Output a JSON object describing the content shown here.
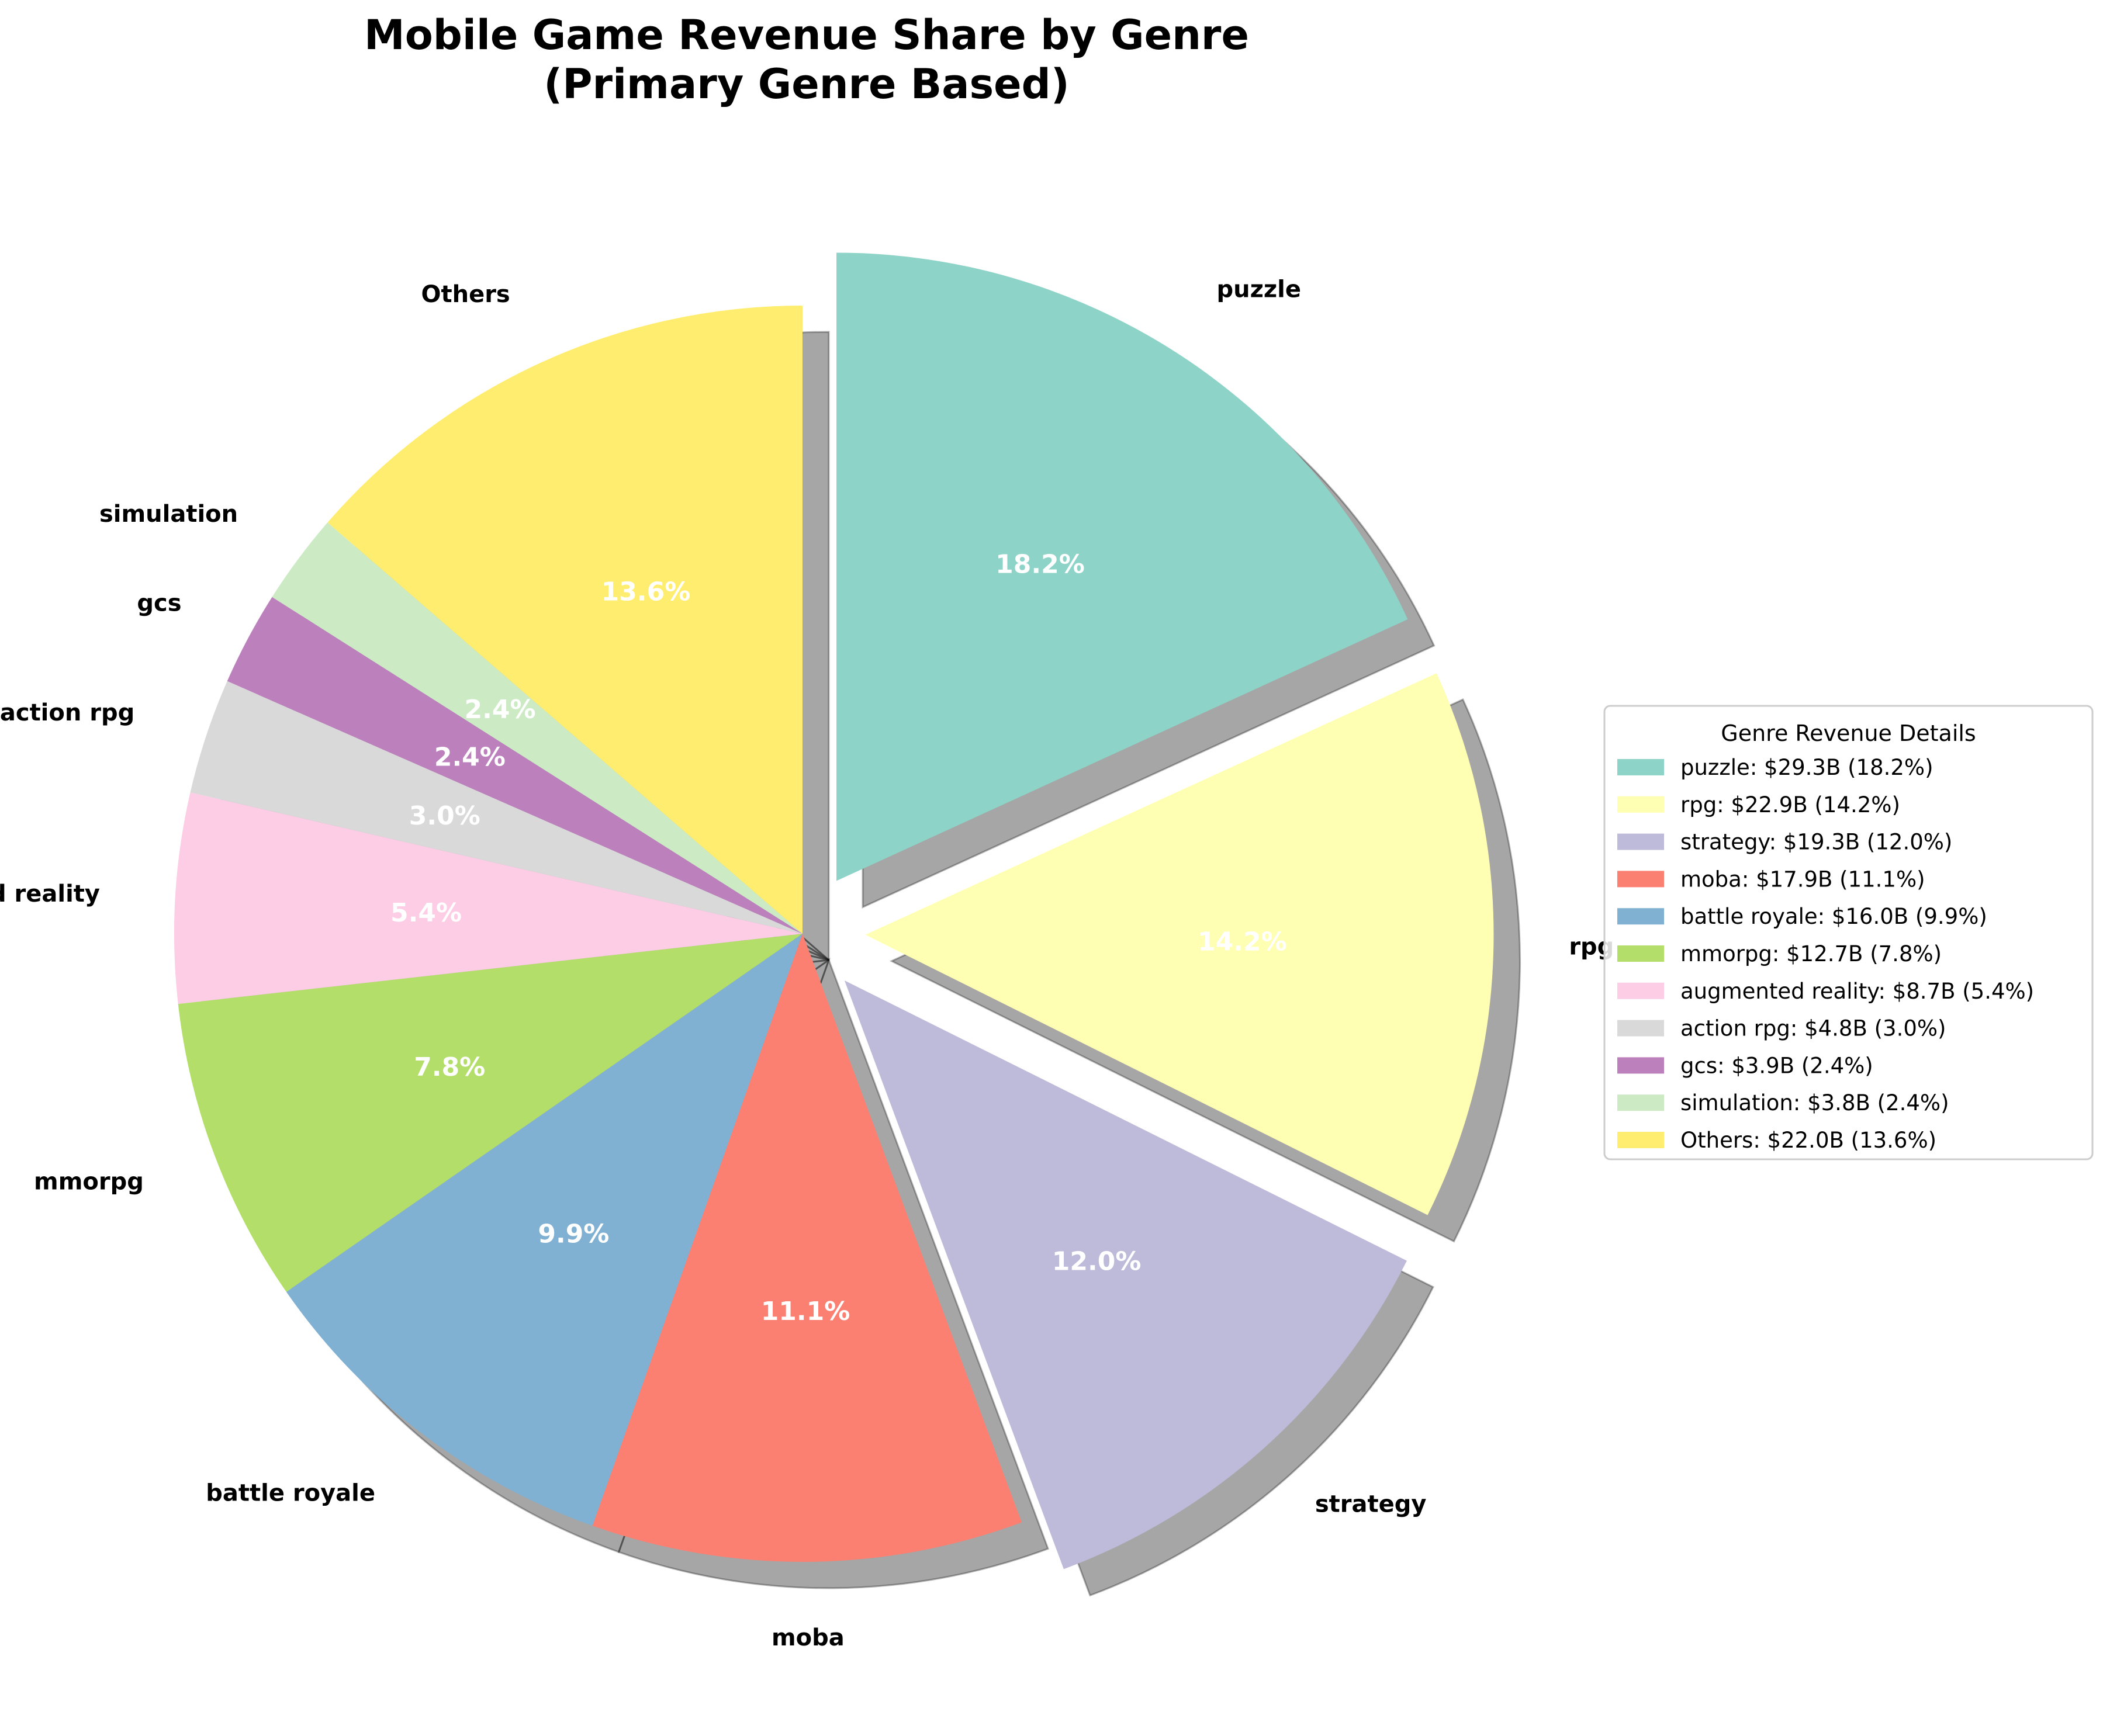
{
  "chart_data": {
    "type": "pie",
    "title": "Mobile Game Revenue Share by Genre",
    "subtitle": "(Primary Genre Based)",
    "start_angle_deg": 90,
    "direction": "clockwise",
    "shadow": true,
    "slices": [
      {
        "label": "puzzle",
        "value": 29.3,
        "pct": "18.2%",
        "legend": "puzzle: $29.3B (18.2%)",
        "color": "#8dd3c7",
        "exploded": true
      },
      {
        "label": "rpg",
        "value": 22.9,
        "pct": "14.2%",
        "legend": "rpg: $22.9B (14.2%)",
        "color": "#ffffb3",
        "exploded": true
      },
      {
        "label": "strategy",
        "value": 19.3,
        "pct": "12.0%",
        "legend": "strategy: $19.3B (12.0%)",
        "color": "#bebada",
        "exploded": true
      },
      {
        "label": "moba",
        "value": 17.9,
        "pct": "11.1%",
        "legend": "moba: $17.9B (11.1%)",
        "color": "#fb8072",
        "exploded": false
      },
      {
        "label": "battle royale",
        "value": 16.0,
        "pct": "9.9%",
        "legend": "battle royale: $16.0B (9.9%)",
        "color": "#80b1d3",
        "exploded": false
      },
      {
        "label": "mmorpg",
        "value": 12.7,
        "pct": "7.8%",
        "legend": "mmorpg: $12.7B (7.8%)",
        "color": "#b3de69",
        "exploded": false
      },
      {
        "label": "augmented reality",
        "value": 8.7,
        "pct": "5.4%",
        "legend": "augmented reality: $8.7B (5.4%)",
        "color": "#fccde5",
        "exploded": false
      },
      {
        "label": "action rpg",
        "value": 4.8,
        "pct": "3.0%",
        "legend": "action rpg: $4.8B (3.0%)",
        "color": "#d9d9d9",
        "exploded": false
      },
      {
        "label": "gcs",
        "value": 3.9,
        "pct": "2.4%",
        "legend": "gcs: $3.9B (2.4%)",
        "color": "#bc80bd",
        "exploded": false
      },
      {
        "label": "simulation",
        "value": 3.8,
        "pct": "2.4%",
        "legend": "simulation: $3.8B (2.4%)",
        "color": "#ccebc5",
        "exploded": false
      },
      {
        "label": "Others",
        "value": 22.0,
        "pct": "13.6%",
        "legend": "Others: $22.0B (13.6%)",
        "color": "#ffed6f",
        "exploded": false
      }
    ],
    "legend": {
      "title": "Genre Revenue Details",
      "placement": "right"
    }
  }
}
